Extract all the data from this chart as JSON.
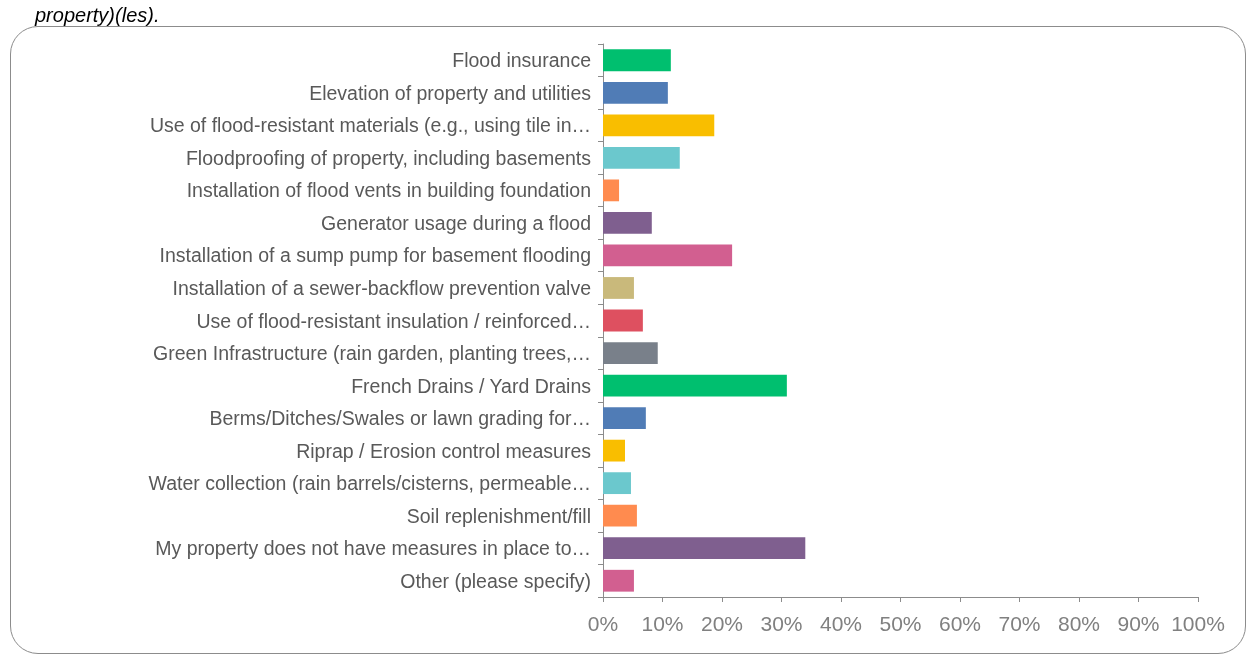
{
  "chart_data": {
    "type": "bar",
    "orientation": "horizontal",
    "title": "property)(les).",
    "categories": [
      "Flood insurance",
      "Elevation of property and utilities",
      "Use of flood-resistant materials (e.g., using tile in…",
      "Floodproofing of property, including basements",
      "Installation of flood vents in building foundation",
      "Generator usage during a flood",
      "Installation of a sump pump for basement flooding",
      "Installation of a sewer-backflow prevention valve",
      "Use of flood-resistant insulation / reinforced…",
      "Green Infrastructure (rain garden, planting trees,…",
      "French Drains / Yard Drains",
      "Berms/Ditches/Swales or lawn grading for…",
      "Riprap / Erosion control measures",
      "Water collection (rain barrels/cisterns, permeable…",
      "Soil replenishment/fill",
      "My property does not have measures in place to…",
      "Other (please specify)"
    ],
    "values": [
      11.4,
      10.9,
      18.7,
      12.9,
      2.7,
      8.2,
      21.7,
      5.2,
      6.7,
      9.2,
      30.9,
      7.2,
      3.7,
      4.7,
      5.7,
      34.0,
      5.2
    ],
    "colors": [
      "#00bf6f",
      "#507cb6",
      "#f9be00",
      "#6bc8cd",
      "#ff8b4f",
      "#7f5f8f",
      "#d25f90",
      "#c9b97b",
      "#de5060",
      "#79808a",
      "#00bf6f",
      "#507cb6",
      "#f9be00",
      "#6bc8cd",
      "#ff8b4f",
      "#7f5f8f",
      "#d25f90"
    ],
    "xlim": [
      0,
      100
    ],
    "xticks": [
      {
        "value": 0,
        "label": "0%"
      },
      {
        "value": 10,
        "label": "10%"
      },
      {
        "value": 20,
        "label": "20%"
      },
      {
        "value": 30,
        "label": "30%"
      },
      {
        "value": 40,
        "label": "40%"
      },
      {
        "value": 50,
        "label": "50%"
      },
      {
        "value": 60,
        "label": "60%"
      },
      {
        "value": 70,
        "label": "70%"
      },
      {
        "value": 80,
        "label": "80%"
      },
      {
        "value": 90,
        "label": "90%"
      },
      {
        "value": 100,
        "label": "100%"
      }
    ],
    "grid": false
  }
}
